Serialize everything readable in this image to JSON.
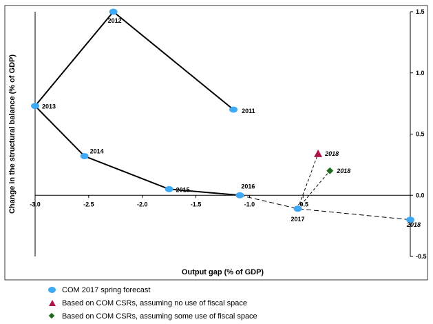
{
  "chart_data": {
    "type": "scatter",
    "xlabel": "Output gap (% of GDP)",
    "ylabel": "Change in the structural balance (% of GDP)",
    "xlim": [
      -3.0,
      0.5
    ],
    "ylim": [
      -0.5,
      1.5
    ],
    "x_ticks": [
      {
        "value": -3.0,
        "label": "-3.0"
      },
      {
        "value": -2.5,
        "label": "-2.5"
      },
      {
        "value": -2.0,
        "label": "-2.0"
      },
      {
        "value": -1.5,
        "label": "-1.5"
      },
      {
        "value": -1.0,
        "label": "-1.0"
      },
      {
        "value": -0.5,
        "label": "-0.5"
      }
    ],
    "y_ticks": [
      {
        "value": -0.5,
        "label": "-0.5"
      },
      {
        "value": 0.0,
        "label": "0.0"
      },
      {
        "value": 0.5,
        "label": "0.5"
      },
      {
        "value": 1.0,
        "label": "1.0"
      },
      {
        "value": 1.5,
        "label": "1.5"
      }
    ],
    "grid": false,
    "y_axis_side": "right",
    "series": [
      {
        "name": "COM 2017 spring forecast",
        "color": "#3fa9f5",
        "marker": "circle",
        "points": [
          {
            "year": "2011",
            "x": -1.15,
            "y": 0.7
          },
          {
            "year": "2012",
            "x": -2.27,
            "y": 1.5
          },
          {
            "year": "2013",
            "x": -3.0,
            "y": 0.73
          },
          {
            "year": "2014",
            "x": -2.54,
            "y": 0.32
          },
          {
            "year": "2015",
            "x": -1.75,
            "y": 0.05
          },
          {
            "year": "2016",
            "x": -1.09,
            "y": 0.0
          },
          {
            "year": "2017",
            "x": -0.55,
            "y": -0.11
          },
          {
            "year": "2018",
            "x": 0.5,
            "y": -0.2
          }
        ]
      },
      {
        "name": "Based on COM CSRs, assuming no use of fiscal space",
        "color": "#b0154a",
        "marker": "triangle",
        "points": [
          {
            "year": "2018",
            "x": -0.36,
            "y": 0.34
          }
        ]
      },
      {
        "name": "Based on COM CSRs, assuming some use of fiscal space",
        "color": "#1e6b1e",
        "marker": "diamond",
        "points": [
          {
            "year": "2018",
            "x": -0.25,
            "y": 0.2
          }
        ]
      }
    ]
  },
  "legend": {
    "items": [
      {
        "label": "COM 2017 spring forecast",
        "color": "#3fa9f5",
        "marker": "circle"
      },
      {
        "label": "Based on COM CSRs, assuming no use of fiscal space",
        "color": "#b0154a",
        "marker": "triangle"
      },
      {
        "label": "Based on COM CSRs, assuming some use of fiscal space",
        "color": "#1e6b1e",
        "marker": "diamond"
      }
    ]
  }
}
